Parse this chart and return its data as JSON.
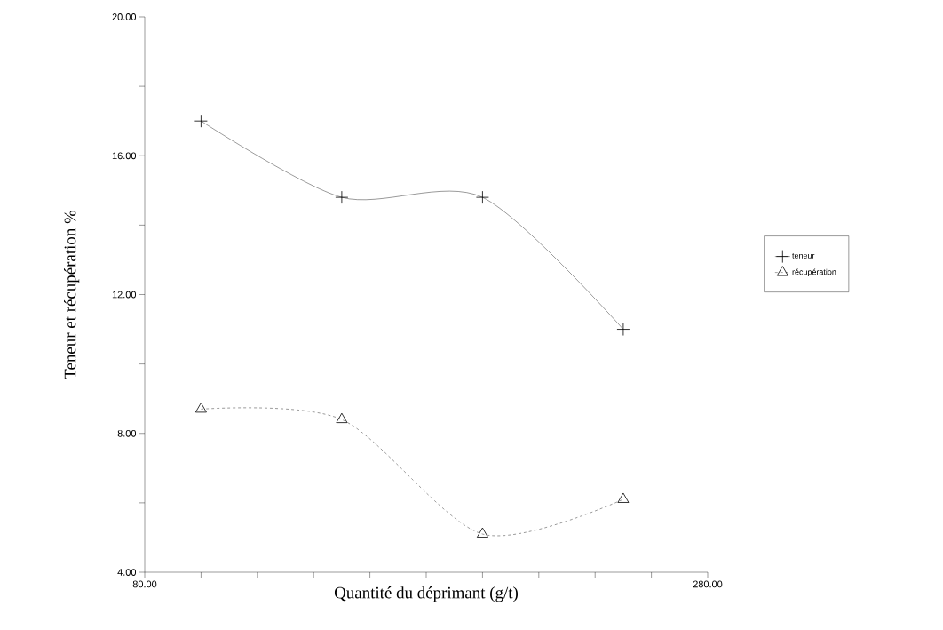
{
  "chart_data": {
    "type": "line",
    "xlabel": "Quantité du déprimant (g/t)",
    "ylabel": "Teneur et récupération %",
    "x": [
      100,
      150,
      200,
      250
    ],
    "series": [
      {
        "name": "teneur",
        "color": "#000000",
        "marker": "cross",
        "line_style": "solid",
        "values": [
          17.0,
          14.8,
          14.8,
          11.0
        ]
      },
      {
        "name": "récupération",
        "color": "#000000",
        "marker": "triangle",
        "line_style": "dashed",
        "values": [
          8.7,
          8.4,
          5.1,
          6.1
        ]
      }
    ],
    "xlim": [
      80,
      280
    ],
    "ylim": [
      4,
      20
    ],
    "xticks": [
      {
        "value": 80,
        "label": "80.00"
      },
      {
        "value": 100,
        "label": null
      },
      {
        "value": 120,
        "label": null
      },
      {
        "value": 140,
        "label": null
      },
      {
        "value": 160,
        "label": null
      },
      {
        "value": 180,
        "label": null
      },
      {
        "value": 200,
        "label": null
      },
      {
        "value": 220,
        "label": null
      },
      {
        "value": 240,
        "label": null
      },
      {
        "value": 260,
        "label": null
      },
      {
        "value": 280,
        "label": "280.00"
      }
    ],
    "yticks": [
      {
        "value": 4,
        "label": "4.00"
      },
      {
        "value": 6,
        "label": null
      },
      {
        "value": 8,
        "label": "8.00"
      },
      {
        "value": 10,
        "label": null
      },
      {
        "value": 12,
        "label": "12.00"
      },
      {
        "value": 14,
        "label": null
      },
      {
        "value": 16,
        "label": "16.00"
      },
      {
        "value": 18,
        "label": null
      },
      {
        "value": 20,
        "label": "20.00"
      }
    ],
    "legend": "right",
    "grid": false
  }
}
